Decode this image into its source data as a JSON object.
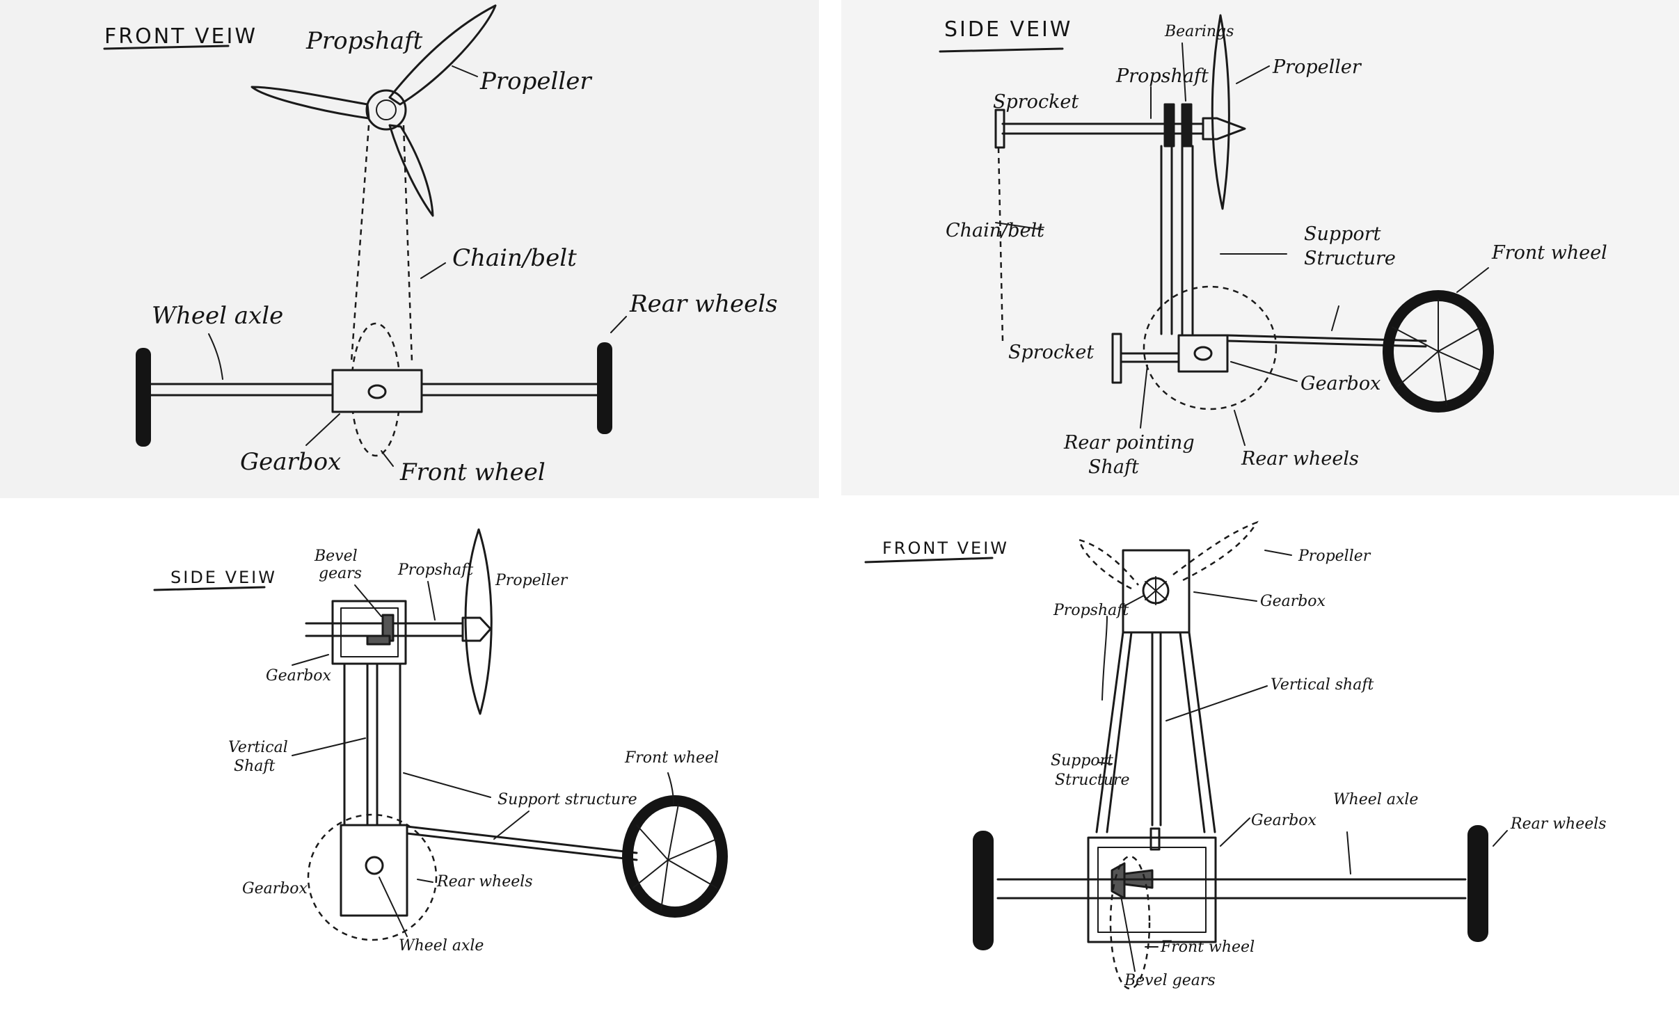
{
  "panels": {
    "front_view_1": {
      "title": "FRONT VEIW",
      "labels": {
        "propshaft": "Propshaft",
        "propeller": "Propeller",
        "chain_belt": "Chain/belt",
        "wheel_axle": "Wheel axle",
        "rear_wheels": "Rear wheels",
        "gearbox": "Gearbox",
        "front_wheel": "Front wheel"
      }
    },
    "side_view_1": {
      "title": "SIDE VEIW",
      "labels": {
        "bearings": "Bearings",
        "propshaft": "Propshaft",
        "propeller": "Propeller",
        "sprocket_top": "Sprocket",
        "chain_belt": "Chain/belt",
        "support_structure_1": "Support",
        "support_structure_2": "Structure",
        "front_wheel": "Front wheel",
        "sprocket_bottom": "Sprocket",
        "gearbox": "Gearbox",
        "rear_pointing_1": "Rear pointing",
        "rear_pointing_2": "Shaft",
        "rear_wheels": "Rear wheels"
      }
    },
    "side_view_2": {
      "title": "SIDE VEIW",
      "labels": {
        "bevel_gears_1": "Bevel",
        "bevel_gears_2": "gears",
        "propshaft": "Propshaft",
        "propeller": "Propeller",
        "gearbox_top": "Gearbox",
        "vertical_shaft_1": "Vertical",
        "vertical_shaft_2": "Shaft",
        "front_wheel": "Front wheel",
        "support_structure": "Support structure",
        "gearbox_bottom": "Gearbox",
        "rear_wheels": "Rear wheels",
        "wheel_axle": "Wheel axle"
      }
    },
    "front_view_2": {
      "title": "FRONT VEIW",
      "labels": {
        "propeller": "Propeller",
        "propshaft": "Propshaft",
        "gearbox_top": "Gearbox",
        "vertical_shaft": "Vertical shaft",
        "support_structure_1": "Support",
        "support_structure_2": "Structure",
        "gearbox_bottom": "Gearbox",
        "wheel_axle": "Wheel axle",
        "rear_wheels": "Rear wheels",
        "front_wheel": "Front wheel",
        "bevel_gears": "Bevel gears"
      }
    }
  }
}
